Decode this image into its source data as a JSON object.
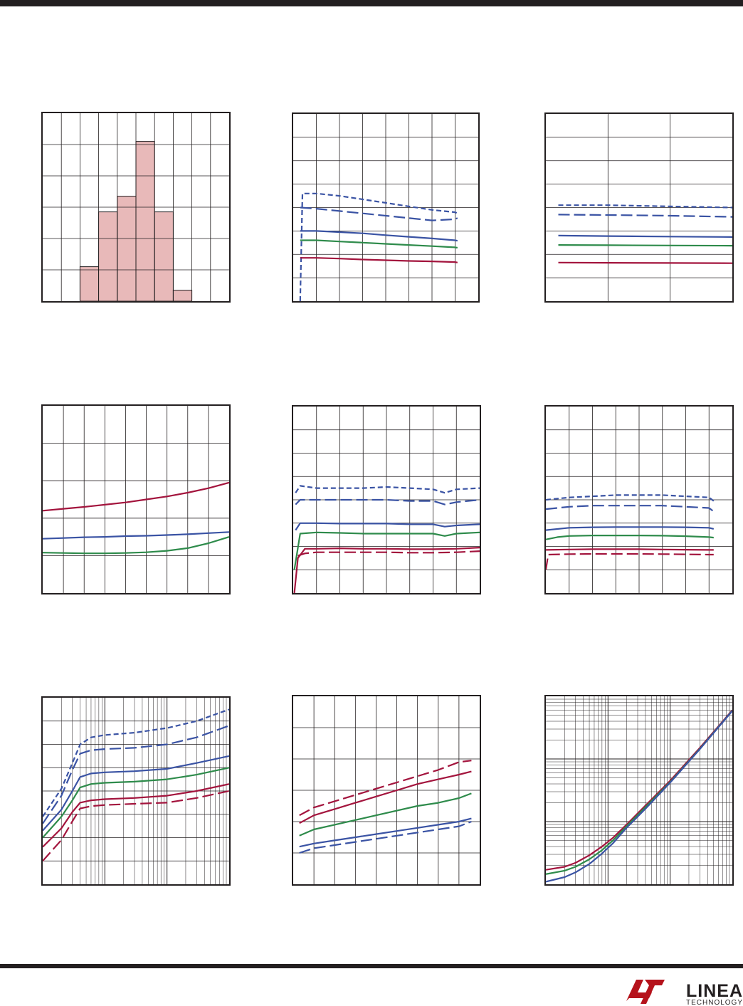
{
  "page": {
    "brand": {
      "name": "LINEAR",
      "subtitle": "TECHNOLOGY",
      "color": "#231f20",
      "accent": "#b5121b"
    }
  },
  "colors": {
    "blue": "#3a53a4",
    "green": "#2e8b4b",
    "red": "#a3143d",
    "histogram_fill": "#e8b9b9",
    "grid": "#231f20"
  },
  "chart_data": [
    {
      "type": "bar",
      "grid": true,
      "xlim": [
        0,
        10
      ],
      "ylim": [
        0,
        6
      ],
      "bins": [
        {
          "x0": 2,
          "x1": 3,
          "value": 1.1
        },
        {
          "x0": 3,
          "x1": 4,
          "value": 2.85
        },
        {
          "x0": 4,
          "x1": 5,
          "value": 3.35
        },
        {
          "x0": 5,
          "x1": 6,
          "value": 5.1
        },
        {
          "x0": 6,
          "x1": 7,
          "value": 2.85
        },
        {
          "x0": 7,
          "x1": 8,
          "value": 0.35
        }
      ]
    },
    {
      "type": "line",
      "grid": true,
      "xlim": [
        0,
        8
      ],
      "ylim": [
        0,
        8
      ],
      "series": [
        {
          "color": "blue",
          "dash": "short",
          "x": [
            0.3,
            0.4,
            1,
            2,
            3,
            4,
            5,
            6,
            7,
            7.1
          ],
          "y": [
            0,
            4.6,
            4.6,
            4.5,
            4.35,
            4.2,
            4.05,
            3.9,
            3.8,
            3.75
          ]
        },
        {
          "color": "blue",
          "dash": "long",
          "x": [
            0.3,
            1,
            2,
            3,
            4,
            5,
            6,
            7,
            7.1
          ],
          "y": [
            4.0,
            3.95,
            3.85,
            3.75,
            3.65,
            3.55,
            3.45,
            3.5,
            3.55
          ]
        },
        {
          "color": "blue",
          "dash": "solid",
          "x": [
            0.3,
            1,
            2,
            3,
            4,
            5,
            6,
            7,
            7.1
          ],
          "y": [
            3.0,
            3.0,
            2.95,
            2.9,
            2.82,
            2.75,
            2.68,
            2.6,
            2.58
          ]
        },
        {
          "color": "green",
          "dash": "solid",
          "x": [
            0.3,
            1,
            2,
            3,
            4,
            5,
            6,
            7,
            7.1
          ],
          "y": [
            2.6,
            2.6,
            2.55,
            2.5,
            2.45,
            2.4,
            2.35,
            2.3,
            2.28
          ]
        },
        {
          "color": "red",
          "dash": "solid",
          "x": [
            0.3,
            1,
            2,
            3,
            4,
            5,
            6,
            7,
            7.1
          ],
          "y": [
            1.85,
            1.85,
            1.82,
            1.78,
            1.75,
            1.72,
            1.7,
            1.67,
            1.65
          ]
        }
      ]
    },
    {
      "type": "line",
      "grid": true,
      "xlim": [
        0,
        3
      ],
      "ylim": [
        0,
        8
      ],
      "series": [
        {
          "color": "blue",
          "dash": "short",
          "x": [
            0.2,
            1,
            2,
            3
          ],
          "y": [
            4.1,
            4.1,
            4.05,
            4.0
          ]
        },
        {
          "color": "blue",
          "dash": "long",
          "x": [
            0.2,
            1,
            2,
            3
          ],
          "y": [
            3.7,
            3.68,
            3.65,
            3.6
          ]
        },
        {
          "color": "blue",
          "dash": "solid",
          "x": [
            0.2,
            1,
            2,
            3
          ],
          "y": [
            2.8,
            2.78,
            2.76,
            2.74
          ]
        },
        {
          "color": "green",
          "dash": "solid",
          "x": [
            0.2,
            1,
            2,
            3
          ],
          "y": [
            2.4,
            2.39,
            2.38,
            2.37
          ]
        },
        {
          "color": "red",
          "dash": "solid",
          "x": [
            0.2,
            1,
            2,
            3
          ],
          "y": [
            1.65,
            1.64,
            1.63,
            1.62
          ]
        }
      ]
    },
    {
      "type": "line",
      "grid": true,
      "xlim": [
        0,
        9
      ],
      "ylim": [
        0,
        5
      ],
      "series": [
        {
          "color": "red",
          "dash": "solid",
          "x": [
            0,
            1,
            2,
            3,
            4,
            5,
            6,
            7,
            8,
            9
          ],
          "y": [
            2.2,
            2.25,
            2.3,
            2.36,
            2.42,
            2.5,
            2.58,
            2.68,
            2.8,
            2.95
          ]
        },
        {
          "color": "blue",
          "dash": "solid",
          "x": [
            0,
            1,
            2,
            3,
            4,
            5,
            6,
            7,
            8,
            9
          ],
          "y": [
            1.45,
            1.47,
            1.49,
            1.5,
            1.52,
            1.53,
            1.55,
            1.57,
            1.6,
            1.63
          ]
        },
        {
          "color": "green",
          "dash": "solid",
          "x": [
            0,
            1,
            2,
            3,
            4,
            5,
            6,
            7,
            8,
            9
          ],
          "y": [
            1.08,
            1.07,
            1.06,
            1.06,
            1.07,
            1.09,
            1.13,
            1.2,
            1.33,
            1.5
          ]
        }
      ]
    },
    {
      "type": "line",
      "grid": true,
      "xlim": [
        0,
        8
      ],
      "ylim": [
        0,
        8
      ],
      "series": [
        {
          "color": "blue",
          "dash": "short",
          "x": [
            0.1,
            0.3,
            1,
            2,
            3,
            4,
            5,
            6,
            6.5,
            7,
            8
          ],
          "y": [
            4.3,
            4.6,
            4.5,
            4.5,
            4.5,
            4.55,
            4.5,
            4.45,
            4.3,
            4.45,
            4.5
          ]
        },
        {
          "color": "blue",
          "dash": "long",
          "x": [
            0.1,
            0.3,
            1,
            2,
            3,
            4,
            5,
            6,
            6.5,
            7,
            8
          ],
          "y": [
            3.8,
            4.0,
            4.0,
            4.0,
            4.0,
            4.0,
            3.95,
            3.95,
            3.8,
            3.9,
            4.0
          ]
        },
        {
          "color": "blue",
          "dash": "solid",
          "x": [
            0.1,
            0.3,
            1,
            2,
            3,
            4,
            5,
            6,
            6.5,
            7,
            8
          ],
          "y": [
            2.7,
            3.0,
            3.0,
            2.98,
            2.98,
            2.98,
            2.95,
            2.95,
            2.85,
            2.9,
            2.95
          ]
        },
        {
          "color": "green",
          "dash": "solid",
          "x": [
            0.05,
            0.3,
            1,
            2,
            3,
            4,
            5,
            6,
            6.5,
            7,
            8
          ],
          "y": [
            1.0,
            2.55,
            2.6,
            2.58,
            2.55,
            2.55,
            2.55,
            2.55,
            2.45,
            2.55,
            2.6
          ]
        },
        {
          "color": "red",
          "dash": "solid",
          "x": [
            0.05,
            0.2,
            0.5,
            1,
            2,
            3,
            4,
            5,
            6,
            7,
            8
          ],
          "y": [
            0,
            1.5,
            1.9,
            1.9,
            1.92,
            1.9,
            1.9,
            1.88,
            1.88,
            1.9,
            1.95
          ]
        },
        {
          "color": "red",
          "dash": "long",
          "x": [
            0.2,
            0.5,
            1,
            2,
            3,
            4,
            5,
            6,
            7,
            8
          ],
          "y": [
            1.6,
            1.7,
            1.75,
            1.75,
            1.75,
            1.75,
            1.73,
            1.73,
            1.75,
            1.8
          ]
        }
      ]
    },
    {
      "type": "line",
      "grid": true,
      "xlim": [
        0,
        8
      ],
      "ylim": [
        0,
        8
      ],
      "series": [
        {
          "color": "blue",
          "dash": "short",
          "x": [
            0,
            1,
            2,
            3,
            4,
            5,
            6,
            7,
            7.2
          ],
          "y": [
            4.0,
            4.1,
            4.15,
            4.2,
            4.2,
            4.2,
            4.15,
            4.1,
            3.95
          ]
        },
        {
          "color": "blue",
          "dash": "long",
          "x": [
            0,
            1,
            2,
            3,
            4,
            5,
            6,
            7,
            7.2
          ],
          "y": [
            3.6,
            3.7,
            3.75,
            3.75,
            3.75,
            3.75,
            3.7,
            3.65,
            3.5
          ]
        },
        {
          "color": "blue",
          "dash": "solid",
          "x": [
            0,
            1,
            2,
            3,
            4,
            5,
            6,
            7,
            7.2
          ],
          "y": [
            2.7,
            2.8,
            2.82,
            2.83,
            2.83,
            2.83,
            2.82,
            2.8,
            2.75
          ]
        },
        {
          "color": "green",
          "dash": "solid",
          "x": [
            0,
            0.5,
            1,
            2,
            3,
            4,
            5,
            6,
            7,
            7.2
          ],
          "y": [
            2.3,
            2.4,
            2.45,
            2.47,
            2.47,
            2.47,
            2.46,
            2.44,
            2.4,
            2.38
          ]
        },
        {
          "color": "red",
          "dash": "solid",
          "x": [
            0,
            1,
            2,
            3,
            4,
            5,
            6,
            7,
            7.2
          ],
          "y": [
            1.85,
            1.87,
            1.88,
            1.88,
            1.88,
            1.87,
            1.86,
            1.85,
            1.85
          ]
        },
        {
          "color": "red",
          "dash": "long",
          "x": [
            0,
            0.1,
            1,
            2,
            3,
            4,
            5,
            6,
            7,
            7.2
          ],
          "y": [
            1.0,
            1.65,
            1.67,
            1.68,
            1.68,
            1.68,
            1.67,
            1.66,
            1.65,
            1.65
          ]
        }
      ]
    },
    {
      "type": "line",
      "grid": true,
      "xscale": "log",
      "xlim": [
        1,
        1000
      ],
      "ylim": [
        0,
        8
      ],
      "series": [
        {
          "color": "blue",
          "dash": "short",
          "x": [
            1,
            2,
            3,
            4,
            6,
            10,
            30,
            100,
            300,
            1000
          ],
          "y": [
            2.9,
            4.1,
            5.2,
            6.0,
            6.3,
            6.4,
            6.5,
            6.7,
            7.0,
            7.5
          ]
        },
        {
          "color": "blue",
          "dash": "long",
          "x": [
            1,
            2,
            3,
            4,
            6,
            10,
            30,
            100,
            300,
            1000
          ],
          "y": [
            2.6,
            3.8,
            4.9,
            5.6,
            5.75,
            5.8,
            5.85,
            6.0,
            6.3,
            6.8
          ]
        },
        {
          "color": "blue",
          "dash": "solid",
          "x": [
            1,
            2,
            3,
            4,
            6,
            10,
            30,
            100,
            300,
            1000
          ],
          "y": [
            2.3,
            3.2,
            4.0,
            4.6,
            4.75,
            4.8,
            4.85,
            4.95,
            5.2,
            5.5
          ]
        },
        {
          "color": "green",
          "dash": "solid",
          "x": [
            1,
            2,
            3,
            4,
            6,
            10,
            30,
            100,
            300,
            1000
          ],
          "y": [
            2.0,
            2.9,
            3.6,
            4.15,
            4.3,
            4.35,
            4.4,
            4.5,
            4.7,
            5.0
          ]
        },
        {
          "color": "red",
          "dash": "solid",
          "x": [
            1,
            2,
            3,
            4,
            6,
            10,
            30,
            100,
            300,
            1000
          ],
          "y": [
            1.6,
            2.4,
            3.1,
            3.5,
            3.6,
            3.65,
            3.7,
            3.8,
            4.0,
            4.3
          ]
        },
        {
          "color": "red",
          "dash": "long",
          "x": [
            1,
            2,
            3,
            4,
            6,
            10,
            30,
            100,
            300,
            1000
          ],
          "y": [
            1.0,
            1.9,
            2.7,
            3.25,
            3.35,
            3.4,
            3.45,
            3.5,
            3.7,
            4.0
          ]
        }
      ]
    },
    {
      "type": "line",
      "grid": true,
      "xlim": [
        0,
        9
      ],
      "ylim": [
        0,
        6
      ],
      "series": [
        {
          "color": "red",
          "dash": "long",
          "x": [
            0.3,
            1,
            2,
            3,
            4,
            5,
            6,
            7,
            8,
            8.6
          ],
          "y": [
            2.2,
            2.45,
            2.65,
            2.85,
            3.05,
            3.25,
            3.45,
            3.65,
            3.9,
            3.95
          ]
        },
        {
          "color": "red",
          "dash": "solid",
          "x": [
            0.3,
            1,
            2,
            3,
            4,
            5,
            6,
            7,
            8,
            8.6
          ],
          "y": [
            1.95,
            2.2,
            2.4,
            2.6,
            2.8,
            3.0,
            3.2,
            3.35,
            3.5,
            3.6
          ]
        },
        {
          "color": "green",
          "dash": "solid",
          "x": [
            0.3,
            1,
            2,
            3,
            4,
            5,
            6,
            7,
            8,
            8.6
          ],
          "y": [
            1.55,
            1.75,
            1.9,
            2.05,
            2.2,
            2.35,
            2.5,
            2.6,
            2.75,
            2.9
          ]
        },
        {
          "color": "blue",
          "dash": "solid",
          "x": [
            0.3,
            1,
            2,
            3,
            4,
            5,
            6,
            7,
            8,
            8.6
          ],
          "y": [
            1.2,
            1.3,
            1.4,
            1.5,
            1.6,
            1.7,
            1.8,
            1.9,
            2.0,
            2.1
          ]
        },
        {
          "color": "blue",
          "dash": "long",
          "x": [
            0.3,
            1,
            2,
            3,
            4,
            5,
            6,
            7,
            8,
            8.6
          ],
          "y": [
            1.0,
            1.15,
            1.25,
            1.35,
            1.45,
            1.55,
            1.65,
            1.75,
            1.85,
            2.0
          ]
        }
      ]
    },
    {
      "type": "line",
      "grid": true,
      "xscale": "log",
      "yscale": "log",
      "xlim": [
        1,
        1000
      ],
      "ylim": [
        1,
        1000
      ],
      "series": [
        {
          "color": "red",
          "dash": "solid",
          "x": [
            1,
            2,
            3,
            5,
            8,
            12,
            20,
            40,
            100,
            300,
            1000
          ],
          "y": [
            1.7,
            1.9,
            2.2,
            2.9,
            4.0,
            5.5,
            9,
            18,
            45,
            150,
            600
          ]
        },
        {
          "color": "green",
          "dash": "solid",
          "x": [
            1,
            2,
            3,
            5,
            8,
            12,
            20,
            40,
            100,
            300,
            1000
          ],
          "y": [
            1.45,
            1.65,
            1.9,
            2.5,
            3.5,
            5.0,
            8.5,
            17,
            43,
            145,
            590
          ]
        },
        {
          "color": "blue",
          "dash": "solid",
          "x": [
            1,
            2,
            3,
            5,
            8,
            12,
            20,
            40,
            100,
            300,
            1000
          ],
          "y": [
            1.1,
            1.3,
            1.55,
            2.1,
            3.1,
            4.5,
            8,
            16,
            42,
            143,
            585
          ]
        }
      ]
    }
  ]
}
